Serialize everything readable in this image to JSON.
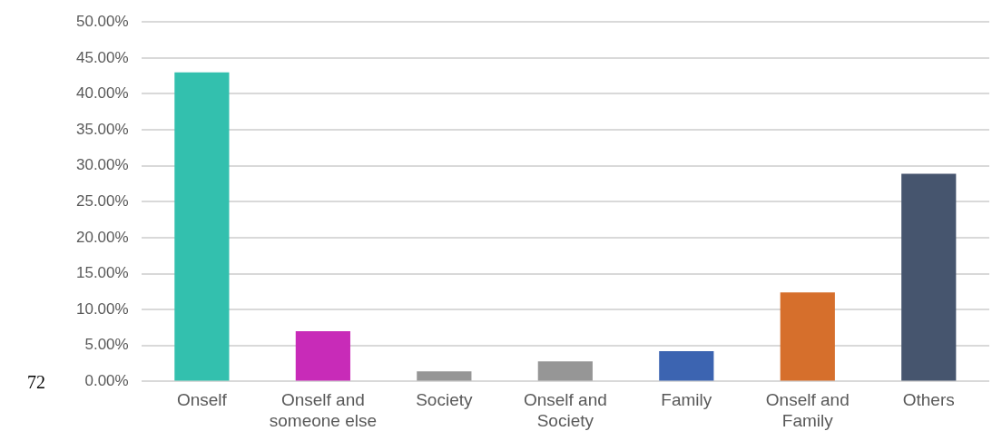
{
  "chart_data": {
    "type": "bar",
    "categories": [
      "Onself",
      "Onself and someone else",
      "Society",
      "Onself and Society",
      "Family",
      "Onself and Family",
      "Others"
    ],
    "values": [
      43.0,
      7.0,
      1.4,
      2.8,
      4.2,
      12.4,
      28.9
    ],
    "colors": [
      "#33c0ae",
      "#c82bb8",
      "#969696",
      "#969696",
      "#3c64b1",
      "#d66f2c",
      "#46556e"
    ],
    "ylim": [
      0,
      50
    ],
    "yticks": [
      {
        "value": 0,
        "label": "0.00%"
      },
      {
        "value": 5,
        "label": "5.00%"
      },
      {
        "value": 10,
        "label": "10.00%"
      },
      {
        "value": 15,
        "label": "15.00%"
      },
      {
        "value": 20,
        "label": "20.00%"
      },
      {
        "value": 25,
        "label": "25.00%"
      },
      {
        "value": 30,
        "label": "30.00%"
      },
      {
        "value": 35,
        "label": "35.00%"
      },
      {
        "value": 40,
        "label": "40.00%"
      },
      {
        "value": 45,
        "label": "45.00%"
      },
      {
        "value": 50,
        "label": "50.00%"
      }
    ],
    "grid": "y",
    "legend": false,
    "annotations": [
      "72"
    ]
  }
}
